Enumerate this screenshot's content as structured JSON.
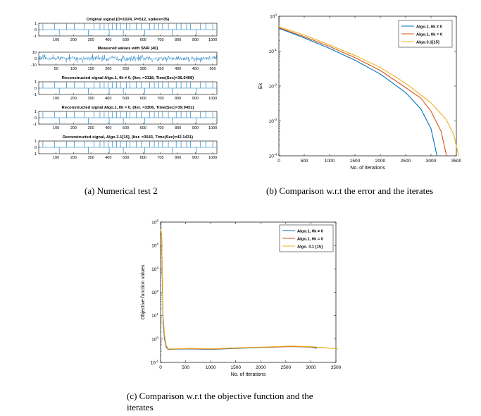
{
  "captions": {
    "a": "(a) Numerical test 2",
    "b": "(b) Comparison w.r.t the error and the iterates",
    "c_line1": "(c) Comparison w.r.t the objective function and the",
    "c_line2": "iterates"
  },
  "chart_data": [
    {
      "id": "a",
      "type": "line",
      "panels": [
        {
          "title": "Original signal (D=1024, P=512, spikes=35)",
          "y_ticks": [
            "1",
            "0",
            "-1"
          ],
          "x_ticks": [
            "100",
            "200",
            "300",
            "400",
            "500",
            "600",
            "700",
            "800",
            "900",
            "1000"
          ],
          "xlim": [
            0,
            1024
          ],
          "ylim": [
            -1,
            1
          ]
        },
        {
          "title": "Measured values with SNR (40)",
          "y_ticks": [
            "10",
            "0",
            "-10"
          ],
          "x_ticks": [
            "50",
            "100",
            "150",
            "200",
            "250",
            "300",
            "350",
            "400",
            "450",
            "500"
          ],
          "xlim": [
            0,
            512
          ],
          "ylim": [
            -10,
            10
          ]
        },
        {
          "title": "Reconstructed signal Algo.1, θk ≠ 0, (Iter. =3118, Time(Sec)=36.6408)",
          "y_ticks": [
            "1",
            "0",
            "-1"
          ],
          "x_ticks": [
            "100",
            "200",
            "300",
            "400",
            "500",
            "600",
            "700",
            "800",
            "900",
            "1000"
          ],
          "xlim": [
            0,
            1024
          ],
          "ylim": [
            -1,
            1
          ]
        },
        {
          "title": "Reconstructed signal Algo.1, θk = 0, (Iter. =3306, Time(Sec)=39.9451)",
          "y_ticks": [
            "1",
            "0",
            "-1"
          ],
          "x_ticks": [
            "100",
            "200",
            "300",
            "400",
            "500",
            "600",
            "700",
            "800",
            "900",
            "1000"
          ],
          "xlim": [
            0,
            1024
          ],
          "ylim": [
            -1,
            1
          ]
        },
        {
          "title": "Reconstructed signal, Algo.3.1[15], (Iter. =3543, Time(Sec)=42.1431)",
          "y_ticks": [
            "1",
            "0",
            "-1"
          ],
          "x_ticks": [
            "100",
            "200",
            "300",
            "400",
            "500",
            "600",
            "700",
            "800",
            "900",
            "1000"
          ],
          "xlim": [
            0,
            1024
          ],
          "ylim": [
            -1,
            1
          ]
        }
      ],
      "spike_positions": [
        24,
        92,
        118,
        160,
        205,
        262,
        285,
        318,
        352,
        376,
        398,
        405,
        422,
        447,
        470,
        486,
        503,
        524,
        560,
        589,
        610,
        638,
        664,
        690,
        712,
        745,
        768,
        790,
        818,
        850,
        872,
        905,
        930,
        960,
        1000
      ],
      "spike_values": [
        1,
        1,
        -1,
        1,
        1,
        1,
        -1,
        1,
        1,
        1,
        1,
        -1,
        1,
        1,
        1,
        -1,
        1,
        1,
        1,
        1,
        -1,
        1,
        1,
        1,
        1,
        1,
        -1,
        1,
        1,
        1,
        1,
        -1,
        1,
        1,
        1
      ]
    },
    {
      "id": "b",
      "type": "line",
      "y_scale": "log",
      "xlim": [
        0,
        3500
      ],
      "ylim": [
        0.0001,
        1
      ],
      "xlabel": "No. of Iterations",
      "ylabel": "Ek",
      "x_ticks": [
        "0",
        "500",
        "1000",
        "1500",
        "2000",
        "2500",
        "3000",
        "3500"
      ],
      "y_ticks": [
        "10^0",
        "10^-1",
        "10^-2",
        "10^-3",
        "10^-4"
      ],
      "legend": "top-right",
      "series": [
        {
          "name": "Algo.1, θk ≠ 0",
          "color": "#0072bd",
          "x": [
            0,
            500,
            1000,
            1500,
            2000,
            2500,
            2800,
            3000,
            3118
          ],
          "y": [
            0.45,
            0.24,
            0.12,
            0.055,
            0.022,
            0.0065,
            0.0022,
            0.0006,
            0.0001
          ]
        },
        {
          "name": "Algo.1, θk = 0",
          "color": "#d95319",
          "x": [
            0,
            500,
            1000,
            1500,
            2000,
            2500,
            2800,
            3000,
            3200,
            3306
          ],
          "y": [
            0.47,
            0.26,
            0.135,
            0.065,
            0.028,
            0.009,
            0.0045,
            0.0019,
            0.0005,
            0.0001
          ]
        },
        {
          "name": "Algo.3.1[15]",
          "color": "#edb120",
          "x": [
            0,
            500,
            1000,
            1500,
            2000,
            2500,
            3000,
            3300,
            3450,
            3543
          ],
          "y": [
            0.5,
            0.29,
            0.15,
            0.075,
            0.034,
            0.012,
            0.0033,
            0.0011,
            0.0004,
            0.0001
          ]
        }
      ]
    },
    {
      "id": "c",
      "type": "line",
      "y_scale": "log",
      "xlim": [
        0,
        3500
      ],
      "ylim": [
        0.1,
        100000
      ],
      "xlabel": "No. of Iterations",
      "ylabel": "Objective function values",
      "x_ticks": [
        "0",
        "500",
        "1000",
        "1500",
        "2000",
        "2500",
        "3000",
        "3500"
      ],
      "y_ticks": [
        "10^5",
        "10^4",
        "10^3",
        "10^2",
        "10^1",
        "10^0",
        "10^-1"
      ],
      "legend": "top-right",
      "series": [
        {
          "name": "Algo.1, θk ≠ 0",
          "color": "#0072bd",
          "x": [
            0,
            20,
            50,
            80,
            110,
            150,
            300,
            600,
            1000,
            1500,
            2000,
            2600,
            3000,
            3118
          ],
          "y": [
            50000,
            30000,
            5,
            1,
            0.45,
            0.36,
            0.37,
            0.38,
            0.36,
            0.4,
            0.43,
            0.48,
            0.45,
            0.4
          ]
        },
        {
          "name": "Algo.1, θk = 0",
          "color": "#d95319",
          "x": [
            0,
            20,
            50,
            80,
            110,
            150,
            300,
            600,
            1000,
            1500,
            2000,
            2600,
            3000,
            3306
          ],
          "y": [
            50000,
            30000,
            8,
            1.3,
            0.5,
            0.37,
            0.38,
            0.39,
            0.37,
            0.41,
            0.44,
            0.48,
            0.46,
            0.42
          ]
        },
        {
          "name": "Algo. 3.1 [15]",
          "color": "#edb120",
          "x": [
            0,
            20,
            50,
            80,
            110,
            150,
            300,
            600,
            1000,
            1500,
            2000,
            2600,
            3000,
            3543
          ],
          "y": [
            50000,
            30000,
            10,
            1.5,
            0.55,
            0.38,
            0.38,
            0.4,
            0.38,
            0.42,
            0.45,
            0.5,
            0.47,
            0.38
          ]
        }
      ]
    }
  ]
}
